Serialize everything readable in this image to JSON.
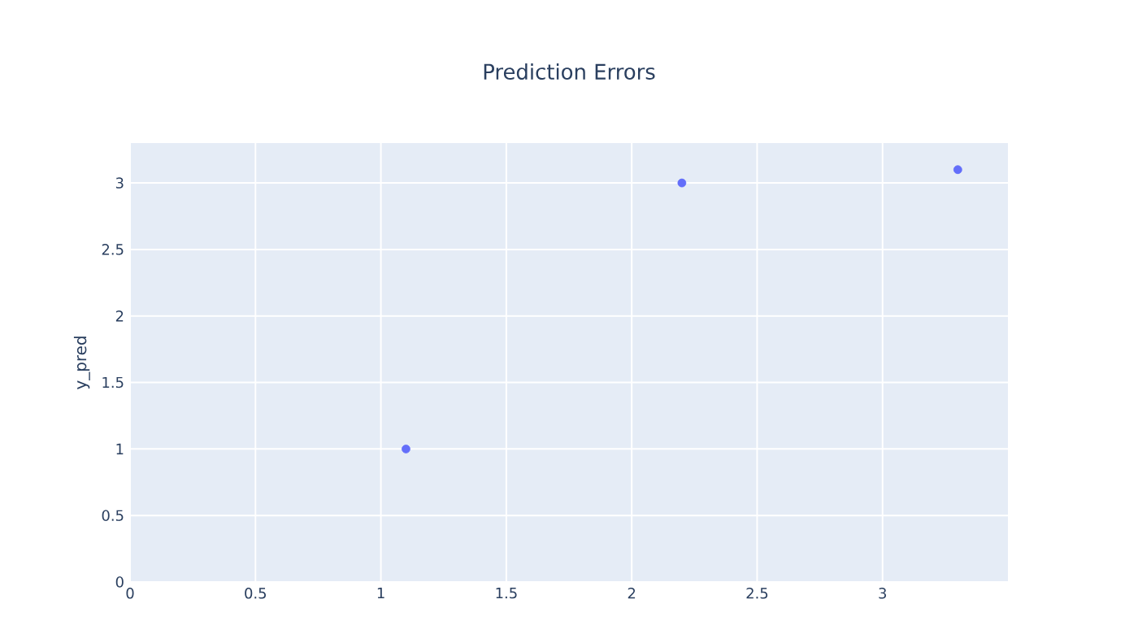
{
  "chart_data": {
    "type": "scatter",
    "title": "Prediction Errors",
    "ylabel": "y_pred",
    "x": [
      1.1,
      2.2,
      3.3
    ],
    "series": [
      {
        "color": "#636efa",
        "values": [
          1,
          3,
          3.1
        ]
      }
    ],
    "xlim": [
      0,
      3.5
    ],
    "ylim": [
      0,
      3.3
    ],
    "xticks": [
      0,
      0.5,
      1,
      1.5,
      2,
      2.5,
      3
    ],
    "yticks": [
      0,
      0.5,
      1,
      1.5,
      2,
      2.5,
      3
    ],
    "grid": true,
    "marker": "circle"
  }
}
